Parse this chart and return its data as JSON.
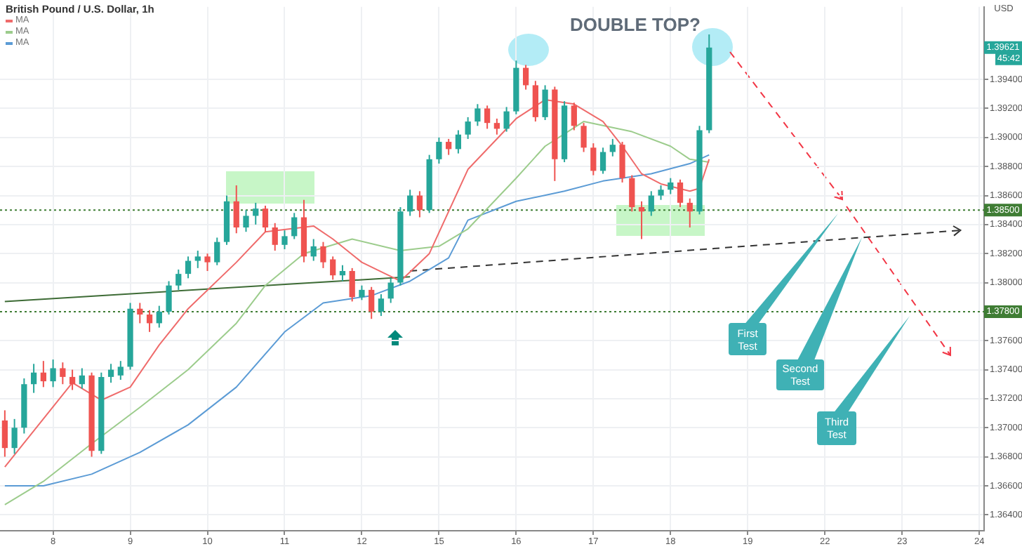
{
  "chart_data": {
    "type": "candlestick",
    "title": "British Pound / U.S. Dollar, 1h",
    "ylabel": "USD",
    "categories": [
      null,
      null,
      null,
      null,
      null,
      "8",
      null,
      null,
      null,
      null,
      null,
      null,
      null,
      "9",
      null,
      null,
      null,
      null,
      null,
      null,
      null,
      "10",
      null,
      null,
      null,
      null,
      null,
      null,
      null,
      "11",
      null,
      null,
      null,
      null,
      null,
      null,
      null,
      "12",
      null,
      null,
      null,
      null,
      null,
      null,
      null,
      "15",
      null,
      null,
      null,
      null,
      null,
      null,
      null,
      "16",
      null,
      null,
      null,
      null,
      null,
      null,
      null,
      "17",
      null,
      null,
      null,
      null,
      null,
      null,
      null,
      "18",
      null,
      null,
      null,
      null,
      null,
      null,
      null,
      "19",
      null,
      null,
      null,
      null,
      null,
      null,
      null,
      "22",
      null,
      null,
      null,
      null,
      null,
      null,
      null,
      "23",
      null,
      null,
      null,
      null,
      null,
      null,
      null,
      "24"
    ],
    "ylim": [
      1.3629,
      1.399
    ],
    "yticks": [
      {
        "value": 1.364,
        "label": "1.36400"
      },
      {
        "value": 1.366,
        "label": "1.36600"
      },
      {
        "value": 1.368,
        "label": "1.36800"
      },
      {
        "value": 1.37,
        "label": "1.37000"
      },
      {
        "value": 1.372,
        "label": "1.37200"
      },
      {
        "value": 1.374,
        "label": "1.37400"
      },
      {
        "value": 1.376,
        "label": "1.37600"
      },
      {
        "value": 1.38,
        "label": "1.38000"
      },
      {
        "value": 1.382,
        "label": "1.38200"
      },
      {
        "value": 1.384,
        "label": "1.38400"
      },
      {
        "value": 1.386,
        "label": "1.38600"
      },
      {
        "value": 1.388,
        "label": "1.38800"
      },
      {
        "value": 1.39,
        "label": "1.39000"
      },
      {
        "value": 1.392,
        "label": "1.39200"
      },
      {
        "value": 1.394,
        "label": "1.39400"
      }
    ],
    "grid": true,
    "legend": "top left",
    "series": [
      {
        "ohlc": [
          [
            1.3705,
            1.3712,
            1.368,
            1.3686
          ],
          [
            1.3686,
            1.3706,
            1.3682,
            1.37
          ],
          [
            1.37,
            1.3734,
            1.3696,
            1.373
          ],
          [
            1.373,
            1.3744,
            1.3724,
            1.3738
          ],
          [
            1.3738,
            1.3746,
            1.3728,
            1.3732
          ],
          [
            1.3732,
            1.3747,
            1.3728,
            1.3741
          ],
          [
            1.3741,
            1.3745,
            1.373,
            1.3735
          ],
          [
            1.3735,
            1.374,
            1.3726,
            1.373
          ],
          [
            1.373,
            1.3741,
            1.3727,
            1.3736
          ],
          [
            1.3736,
            1.3738,
            1.368,
            1.3684
          ],
          [
            1.3684,
            1.3738,
            1.3682,
            1.3735
          ],
          [
            1.3735,
            1.3744,
            1.3731,
            1.374
          ],
          [
            1.3736,
            1.3746,
            1.3733,
            1.3742
          ],
          [
            1.3742,
            1.3786,
            1.374,
            1.3782
          ],
          [
            1.3782,
            1.3786,
            1.3772,
            1.3778
          ],
          [
            1.3778,
            1.3781,
            1.3766,
            1.3772
          ],
          [
            1.3772,
            1.3784,
            1.3769,
            1.378
          ],
          [
            1.378,
            1.3801,
            1.3778,
            1.3798
          ],
          [
            1.3798,
            1.3809,
            1.3795,
            1.3806
          ],
          [
            1.3806,
            1.3818,
            1.3803,
            1.3815
          ],
          [
            1.3815,
            1.3822,
            1.381,
            1.3818
          ],
          [
            1.3818,
            1.382,
            1.3808,
            1.3814
          ],
          [
            1.3814,
            1.3831,
            1.3812,
            1.3828
          ],
          [
            1.3828,
            1.386,
            1.3826,
            1.3856
          ],
          [
            1.3856,
            1.3867,
            1.3834,
            1.3838
          ],
          [
            1.3838,
            1.385,
            1.3835,
            1.3846
          ],
          [
            1.3846,
            1.3855,
            1.384,
            1.3851
          ],
          [
            1.3851,
            1.3853,
            1.3835,
            1.3838
          ],
          [
            1.3838,
            1.3841,
            1.3822,
            1.3826
          ],
          [
            1.3826,
            1.3836,
            1.3823,
            1.3832
          ],
          [
            1.3832,
            1.3848,
            1.383,
            1.3845
          ],
          [
            1.3845,
            1.3857,
            1.3814,
            1.3818
          ],
          [
            1.3818,
            1.383,
            1.3815,
            1.3825
          ],
          [
            1.3825,
            1.3828,
            1.381,
            1.3814
          ],
          [
            1.3816,
            1.3818,
            1.3802,
            1.3805
          ],
          [
            1.3805,
            1.3812,
            1.3801,
            1.3808
          ],
          [
            1.3808,
            1.381,
            1.3787,
            1.379
          ],
          [
            1.379,
            1.3798,
            1.3788,
            1.3795
          ],
          [
            1.3795,
            1.3797,
            1.3775,
            1.378
          ],
          [
            1.378,
            1.3792,
            1.3777,
            1.3789
          ],
          [
            1.3789,
            1.3803,
            1.3786,
            1.38
          ],
          [
            1.38,
            1.3852,
            1.3798,
            1.3849
          ],
          [
            1.3849,
            1.3864,
            1.3846,
            1.386
          ],
          [
            1.386,
            1.3863,
            1.3845,
            1.385
          ],
          [
            1.385,
            1.3888,
            1.3848,
            1.3885
          ],
          [
            1.3885,
            1.39,
            1.3882,
            1.3897
          ],
          [
            1.3897,
            1.3899,
            1.3888,
            1.3892
          ],
          [
            1.3892,
            1.3905,
            1.3889,
            1.3902
          ],
          [
            1.3902,
            1.3914,
            1.3899,
            1.3911
          ],
          [
            1.3911,
            1.3923,
            1.3908,
            1.392
          ],
          [
            1.392,
            1.3922,
            1.3906,
            1.391
          ],
          [
            1.391,
            1.3913,
            1.3902,
            1.3906
          ],
          [
            1.3906,
            1.3921,
            1.3904,
            1.3918
          ],
          [
            1.3918,
            1.3953,
            1.3916,
            1.3948
          ],
          [
            1.3948,
            1.395,
            1.3933,
            1.3936
          ],
          [
            1.3936,
            1.3939,
            1.3911,
            1.3914
          ],
          [
            1.3914,
            1.3936,
            1.3912,
            1.3933
          ],
          [
            1.3933,
            1.3935,
            1.387,
            1.3885
          ],
          [
            1.3885,
            1.3925,
            1.3883,
            1.3922
          ],
          [
            1.3922,
            1.3924,
            1.3905,
            1.3908
          ],
          [
            1.3908,
            1.391,
            1.389,
            1.3893
          ],
          [
            1.3893,
            1.3896,
            1.3874,
            1.3877
          ],
          [
            1.3877,
            1.3893,
            1.3875,
            1.389
          ],
          [
            1.389,
            1.3899,
            1.3887,
            1.3895
          ],
          [
            1.3895,
            1.3897,
            1.3869,
            1.3872
          ],
          [
            1.3872,
            1.3874,
            1.3849,
            1.3852
          ],
          [
            1.3852,
            1.3856,
            1.383,
            1.3849
          ],
          [
            1.3849,
            1.3863,
            1.3846,
            1.386
          ],
          [
            1.386,
            1.3867,
            1.3857,
            1.3864
          ],
          [
            1.3864,
            1.3872,
            1.3861,
            1.3869
          ],
          [
            1.3869,
            1.3871,
            1.3852,
            1.3855
          ],
          [
            1.3855,
            1.3858,
            1.3838,
            1.3849
          ],
          [
            1.3849,
            1.3908,
            1.3847,
            1.3905
          ],
          [
            1.3905,
            1.3971,
            1.3903,
            1.3962
          ],
          null,
          null,
          null,
          null,
          null,
          null,
          null,
          null,
          null,
          null,
          null,
          null,
          null,
          null,
          null,
          null,
          null,
          null,
          null,
          null,
          null,
          null,
          null,
          null,
          null,
          null,
          null,
          null
        ],
        "colors": [
          "#ef5350",
          "#26a69a",
          "#26a69a",
          "#26a69a",
          "#ef5350",
          "#26a69a",
          "#ef5350",
          "#ef5350",
          "#26a69a",
          "#ef5350",
          "#26a69a",
          "#26a69a",
          "#26a69a",
          "#26a69a",
          "#ef5350",
          "#ef5350",
          "#26a69a",
          "#26a69a",
          "#26a69a",
          "#26a69a",
          "#26a69a",
          "#ef5350",
          "#26a69a",
          "#26a69a",
          "#ef5350",
          "#26a69a",
          "#26a69a",
          "#ef5350",
          "#ef5350",
          "#26a69a",
          "#26a69a",
          "#ef5350",
          "#26a69a",
          "#ef5350",
          "#ef5350",
          "#26a69a",
          "#ef5350",
          "#26a69a",
          "#ef5350",
          "#26a69a",
          "#26a69a",
          "#26a69a",
          "#26a69a",
          "#ef5350",
          "#26a69a",
          "#26a69a",
          "#ef5350",
          "#26a69a",
          "#26a69a",
          "#26a69a",
          "#ef5350",
          "#ef5350",
          "#26a69a",
          "#26a69a",
          "#ef5350",
          "#ef5350",
          "#26a69a",
          "#ef5350",
          "#26a69a",
          "#ef5350",
          "#ef5350",
          "#ef5350",
          "#26a69a",
          "#26a69a",
          "#ef5350",
          "#ef5350",
          "#ef5350",
          "#26a69a",
          "#26a69a",
          "#26a69a",
          "#ef5350",
          "#ef5350",
          "#26a69a",
          "#26a69a",
          null,
          null,
          null,
          null,
          null,
          null,
          null,
          null,
          null,
          null,
          null,
          null,
          null,
          null,
          null,
          null,
          null,
          null,
          null,
          null,
          null,
          null,
          null,
          null,
          null,
          null,
          null,
          null
        ]
      },
      {
        "type": "line",
        "name": "MA",
        "color": "#ef6b6b",
        "values": [
          1.3673,
          null,
          null,
          null,
          null,
          null,
          null,
          1.3731,
          null,
          null,
          1.3719,
          null,
          null,
          1.3728,
          null,
          null,
          1.3757,
          null,
          null,
          1.3782,
          null,
          null,
          null,
          null,
          1.3814,
          null,
          null,
          1.3835,
          null,
          null,
          null,
          null,
          1.3839,
          null,
          1.383,
          null,
          null,
          1.3814,
          null,
          null,
          null,
          1.3801,
          null,
          null,
          1.382,
          null,
          null,
          null,
          1.3878,
          null,
          null,
          null,
          null,
          1.3913,
          null,
          null,
          1.3926,
          null,
          null,
          1.3923,
          null,
          null,
          1.3911,
          null,
          1.3894,
          null,
          1.3875,
          null,
          1.3868,
          null,
          null,
          1.3863,
          1.3865,
          1.3885,
          null,
          null,
          null,
          null,
          null,
          null,
          null,
          null,
          null,
          null,
          null,
          null,
          null,
          null,
          null,
          null,
          null,
          null,
          null,
          null,
          null,
          null,
          null,
          null,
          null,
          null,
          null,
          null
        ]
      },
      {
        "type": "line",
        "name": "MA",
        "color": "#9ccc8c",
        "values": [
          1.3647,
          null,
          null,
          null,
          1.3663,
          null,
          null,
          null,
          null,
          1.3689,
          null,
          null,
          null,
          null,
          1.3714,
          null,
          null,
          null,
          null,
          1.374,
          null,
          null,
          null,
          null,
          1.3772,
          null,
          null,
          1.3798,
          null,
          null,
          null,
          1.382,
          null,
          null,
          null,
          null,
          1.383,
          null,
          null,
          null,
          null,
          1.3822,
          null,
          null,
          null,
          1.3825,
          null,
          null,
          1.3837,
          null,
          null,
          null,
          null,
          1.3872,
          null,
          null,
          1.3894,
          null,
          null,
          null,
          1.3911,
          null,
          null,
          null,
          null,
          1.3904,
          null,
          null,
          null,
          1.3894,
          null,
          1.3885,
          null,
          1.3883,
          null,
          null,
          null,
          null,
          null,
          null,
          null,
          null,
          null,
          null,
          null,
          null,
          null,
          null,
          null,
          null,
          null,
          null,
          null,
          null,
          null,
          null,
          null,
          null,
          null,
          null,
          null,
          null
        ]
      },
      {
        "type": "line",
        "name": "MA",
        "color": "#5b9bd5",
        "values": [
          1.366,
          null,
          null,
          null,
          1.366,
          null,
          null,
          null,
          null,
          1.3668,
          null,
          null,
          null,
          null,
          1.3683,
          null,
          null,
          null,
          null,
          1.3702,
          null,
          null,
          null,
          null,
          1.3728,
          null,
          null,
          null,
          null,
          1.3766,
          null,
          null,
          null,
          1.3786,
          null,
          null,
          null,
          null,
          1.3791,
          null,
          null,
          null,
          1.3801,
          null,
          null,
          null,
          1.3817,
          null,
          1.3843,
          null,
          null,
          null,
          null,
          1.3856,
          null,
          null,
          null,
          null,
          1.3863,
          null,
          null,
          null,
          1.387,
          null,
          null,
          null,
          null,
          1.3875,
          null,
          null,
          null,
          1.3882,
          null,
          1.3888,
          null,
          null,
          null,
          null,
          null,
          null,
          null,
          null,
          null,
          null,
          null,
          null,
          null,
          null,
          null,
          null,
          null,
          null,
          null,
          null,
          null,
          null,
          null,
          null,
          null,
          null,
          null,
          null
        ]
      },
      {
        "type": "line",
        "color": "#333333",
        "line_style": "dashed",
        "values": [
          null,
          null,
          null,
          null,
          null,
          null,
          null,
          null,
          null,
          null,
          null,
          null,
          null,
          null,
          null,
          null,
          null,
          null,
          null,
          null,
          null,
          null,
          null,
          null,
          null,
          null,
          null,
          null,
          null,
          null,
          null,
          null,
          null,
          null,
          null,
          null,
          null,
          null,
          null,
          null,
          null,
          null,
          1.3808,
          null,
          null,
          null,
          null,
          null,
          null,
          null,
          null,
          null,
          null,
          null,
          null,
          null,
          null,
          null,
          null,
          null,
          null,
          null,
          null,
          null,
          null,
          null,
          null,
          null,
          null,
          null,
          null,
          null,
          null,
          null,
          null,
          null,
          null,
          null,
          null,
          null,
          null,
          null,
          null,
          null,
          null,
          null,
          null,
          null,
          null,
          null,
          null,
          null,
          null,
          null,
          null,
          null,
          null,
          null,
          null,
          1.3836,
          null,
          null
        ]
      },
      {
        "type": "line",
        "color": "#3d6b35",
        "line_style": "solid",
        "values": [
          1.3787,
          null,
          null,
          null,
          null,
          null,
          null,
          null,
          null,
          null,
          null,
          null,
          null,
          null,
          null,
          null,
          null,
          null,
          null,
          null,
          null,
          null,
          null,
          null,
          null,
          null,
          null,
          null,
          null,
          null,
          null,
          null,
          null,
          null,
          null,
          null,
          null,
          null,
          null,
          null,
          null,
          null,
          1.3804,
          null,
          null,
          null,
          null,
          null,
          null,
          null,
          null,
          null,
          null,
          null,
          null,
          null,
          null,
          null,
          null,
          null,
          null,
          null,
          null,
          null,
          null,
          null,
          null,
          null,
          null,
          null,
          null,
          null,
          null,
          null,
          null,
          null,
          null,
          null,
          null,
          null,
          null,
          null,
          null,
          null,
          null,
          null,
          null,
          null,
          null,
          null,
          null,
          null,
          null,
          null,
          null,
          null,
          null,
          null,
          null,
          null,
          null,
          null
        ]
      }
    ],
    "ref_lines": [
      {
        "axis": "y",
        "value": 1.385,
        "label": "1.38500",
        "color": "#3f7d34",
        "line_style": "dotted"
      },
      {
        "axis": "y",
        "value": 1.378,
        "label": "1.37800",
        "color": "#3f7d34",
        "line_style": "dotted"
      }
    ],
    "annotations": [
      "DOUBLE TOP?",
      "First Test",
      "Second Test",
      "Third Test",
      "1.39621",
      "45:42"
    ]
  }
}
